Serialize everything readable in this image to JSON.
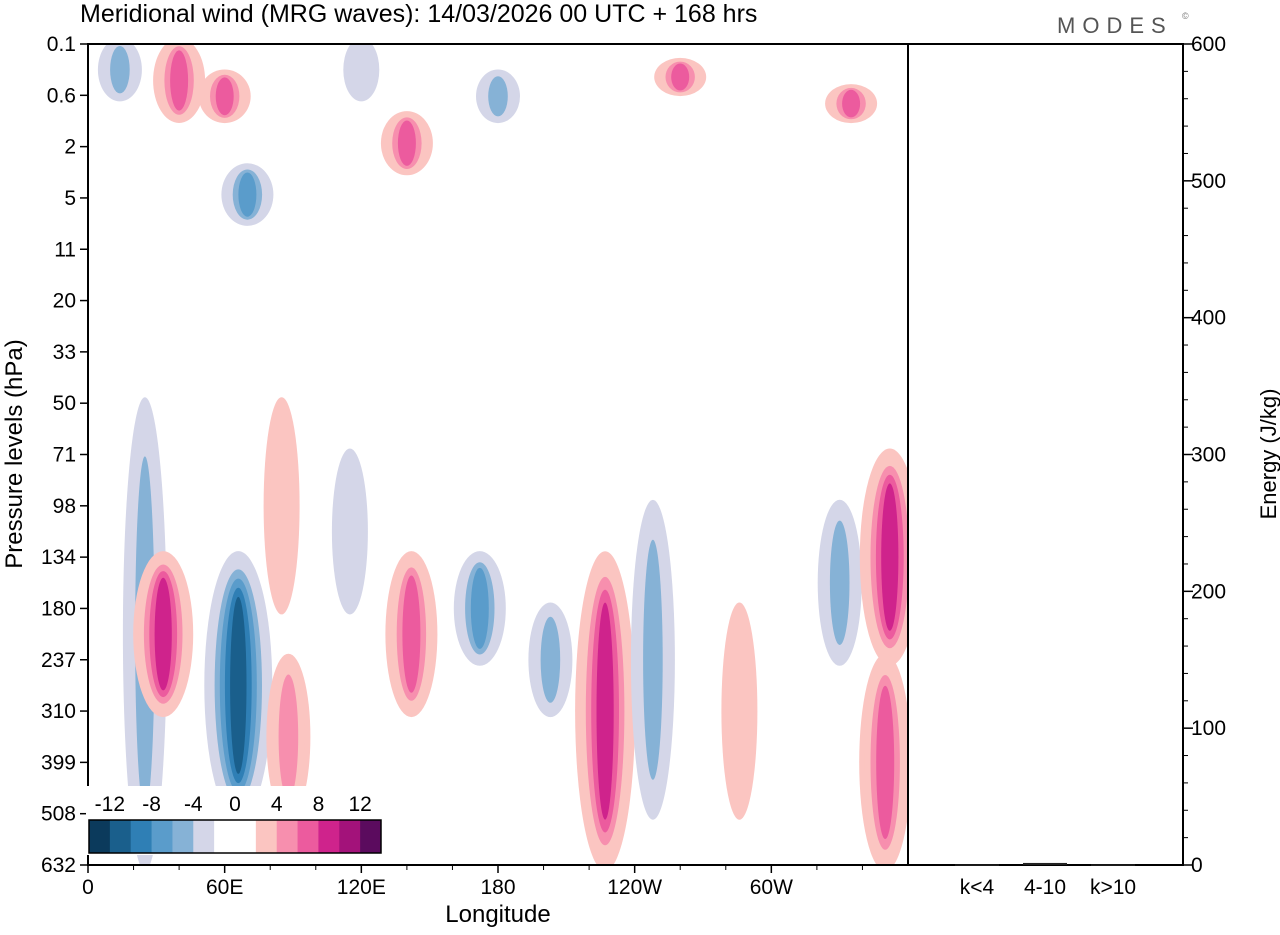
{
  "header": {
    "title": "Meridional wind (MRG waves):  14/03/2026  00 UTC  + 168 hrs",
    "brand": "MODES",
    "brand_mark": "©"
  },
  "chart_data": [
    {
      "type": "heatmap",
      "subtype": "filled-contour",
      "title": "Meridional wind (MRG waves):  14/03/2026  00 UTC  + 168 hrs",
      "variable": "meridional wind",
      "xlabel": "Longitude",
      "ylabel": "Pressure levels (hPa)",
      "x_ticks": [
        "0",
        "60E",
        "120E",
        "180",
        "120W",
        "60W"
      ],
      "x_tick_values": [
        0,
        60,
        120,
        180,
        240,
        300
      ],
      "xlim": [
        0,
        360
      ],
      "y_ticks": [
        "0.1",
        "0.6",
        "2",
        "5",
        "11",
        "20",
        "33",
        "50",
        "71",
        "98",
        "134",
        "180",
        "237",
        "310",
        "399",
        "508",
        "632"
      ],
      "y_scale": "pressure levels (top to bottom)",
      "colorbar": {
        "labels": [
          "-12",
          "-8",
          "-4",
          "0",
          "4",
          "8",
          "12"
        ],
        "levels": [
          -14,
          -12,
          -10,
          -8,
          -6,
          -4,
          -2,
          2,
          4,
          6,
          8,
          10,
          12,
          14
        ],
        "colors": [
          "#0b3a5c",
          "#1a5f8c",
          "#2f7fb5",
          "#5a9ccb",
          "#86b2d6",
          "#d4d6e8",
          "#ffffff",
          "#ffffff",
          "#fbc5c1",
          "#f78fae",
          "#ec5b9e",
          "#cf238c",
          "#a3127a",
          "#5b0b5e"
        ]
      },
      "features": [
        {
          "sign": "negative",
          "lon": 14,
          "level_range": [
            "0.1",
            "0.6"
          ],
          "peak": -6
        },
        {
          "sign": "positive",
          "lon": 40,
          "level_range": [
            "0.1",
            "1"
          ],
          "peak": 8
        },
        {
          "sign": "positive",
          "lon": 60,
          "level_range": [
            "0.3",
            "1"
          ],
          "peak": 8
        },
        {
          "sign": "negative",
          "lon": 120,
          "level_range": [
            "0.1",
            "0.6"
          ],
          "peak": -4
        },
        {
          "sign": "negative",
          "lon": 180,
          "level_range": [
            "0.3",
            "1"
          ],
          "peak": -6
        },
        {
          "sign": "positive",
          "lon": 140,
          "level_range": [
            "1",
            "3"
          ],
          "peak": 8
        },
        {
          "sign": "negative",
          "lon": 70,
          "level_range": [
            "3",
            "7"
          ],
          "peak": -8
        },
        {
          "sign": "positive",
          "lon": 260,
          "level_range": [
            "0.2",
            "0.5"
          ],
          "peak": 8
        },
        {
          "sign": "positive",
          "lon": 335,
          "level_range": [
            "0.5",
            "1"
          ],
          "peak": 8
        },
        {
          "sign": "negative",
          "lon": 25,
          "level_range": [
            "50",
            "632"
          ],
          "peak": -6
        },
        {
          "sign": "positive",
          "lon": 33,
          "level_range": [
            "134",
            "310"
          ],
          "peak": 10
        },
        {
          "sign": "negative",
          "lon": 66,
          "level_range": [
            "134",
            "508"
          ],
          "peak": -12
        },
        {
          "sign": "positive",
          "lon": 88,
          "level_range": [
            "237",
            "508"
          ],
          "peak": 6
        },
        {
          "sign": "positive",
          "lon": 85,
          "level_range": [
            "50",
            "180"
          ],
          "peak": 4
        },
        {
          "sign": "negative",
          "lon": 115,
          "level_range": [
            "71",
            "180"
          ],
          "peak": -4
        },
        {
          "sign": "positive",
          "lon": 142,
          "level_range": [
            "134",
            "310"
          ],
          "peak": 8
        },
        {
          "sign": "negative",
          "lon": 172,
          "level_range": [
            "134",
            "237"
          ],
          "peak": -8
        },
        {
          "sign": "negative",
          "lon": 203,
          "level_range": [
            "180",
            "310"
          ],
          "peak": -6
        },
        {
          "sign": "positive",
          "lon": 227,
          "level_range": [
            "134",
            "632"
          ],
          "peak": 10
        },
        {
          "sign": "negative",
          "lon": 248,
          "level_range": [
            "98",
            "508"
          ],
          "peak": -6
        },
        {
          "sign": "positive",
          "lon": 286,
          "level_range": [
            "180",
            "508"
          ],
          "peak": 4
        },
        {
          "sign": "negative",
          "lon": 330,
          "level_range": [
            "98",
            "237"
          ],
          "peak": -6
        },
        {
          "sign": "positive",
          "lon": 352,
          "level_range": [
            "71",
            "237"
          ],
          "peak": 10
        },
        {
          "sign": "positive",
          "lon": 350,
          "level_range": [
            "237",
            "632"
          ],
          "peak": 8
        }
      ]
    },
    {
      "type": "bar",
      "categories": [
        "k<4",
        "4-10",
        "k>10"
      ],
      "values": [
        0.5,
        1.5,
        0.5
      ],
      "ylabel": "Energy (J/kg)",
      "ylim": [
        0,
        600
      ],
      "y_ticks": [
        "0",
        "100",
        "200",
        "300",
        "400",
        "500",
        "600"
      ],
      "y_tick_values": [
        0,
        100,
        200,
        300,
        400,
        500,
        600
      ]
    }
  ]
}
